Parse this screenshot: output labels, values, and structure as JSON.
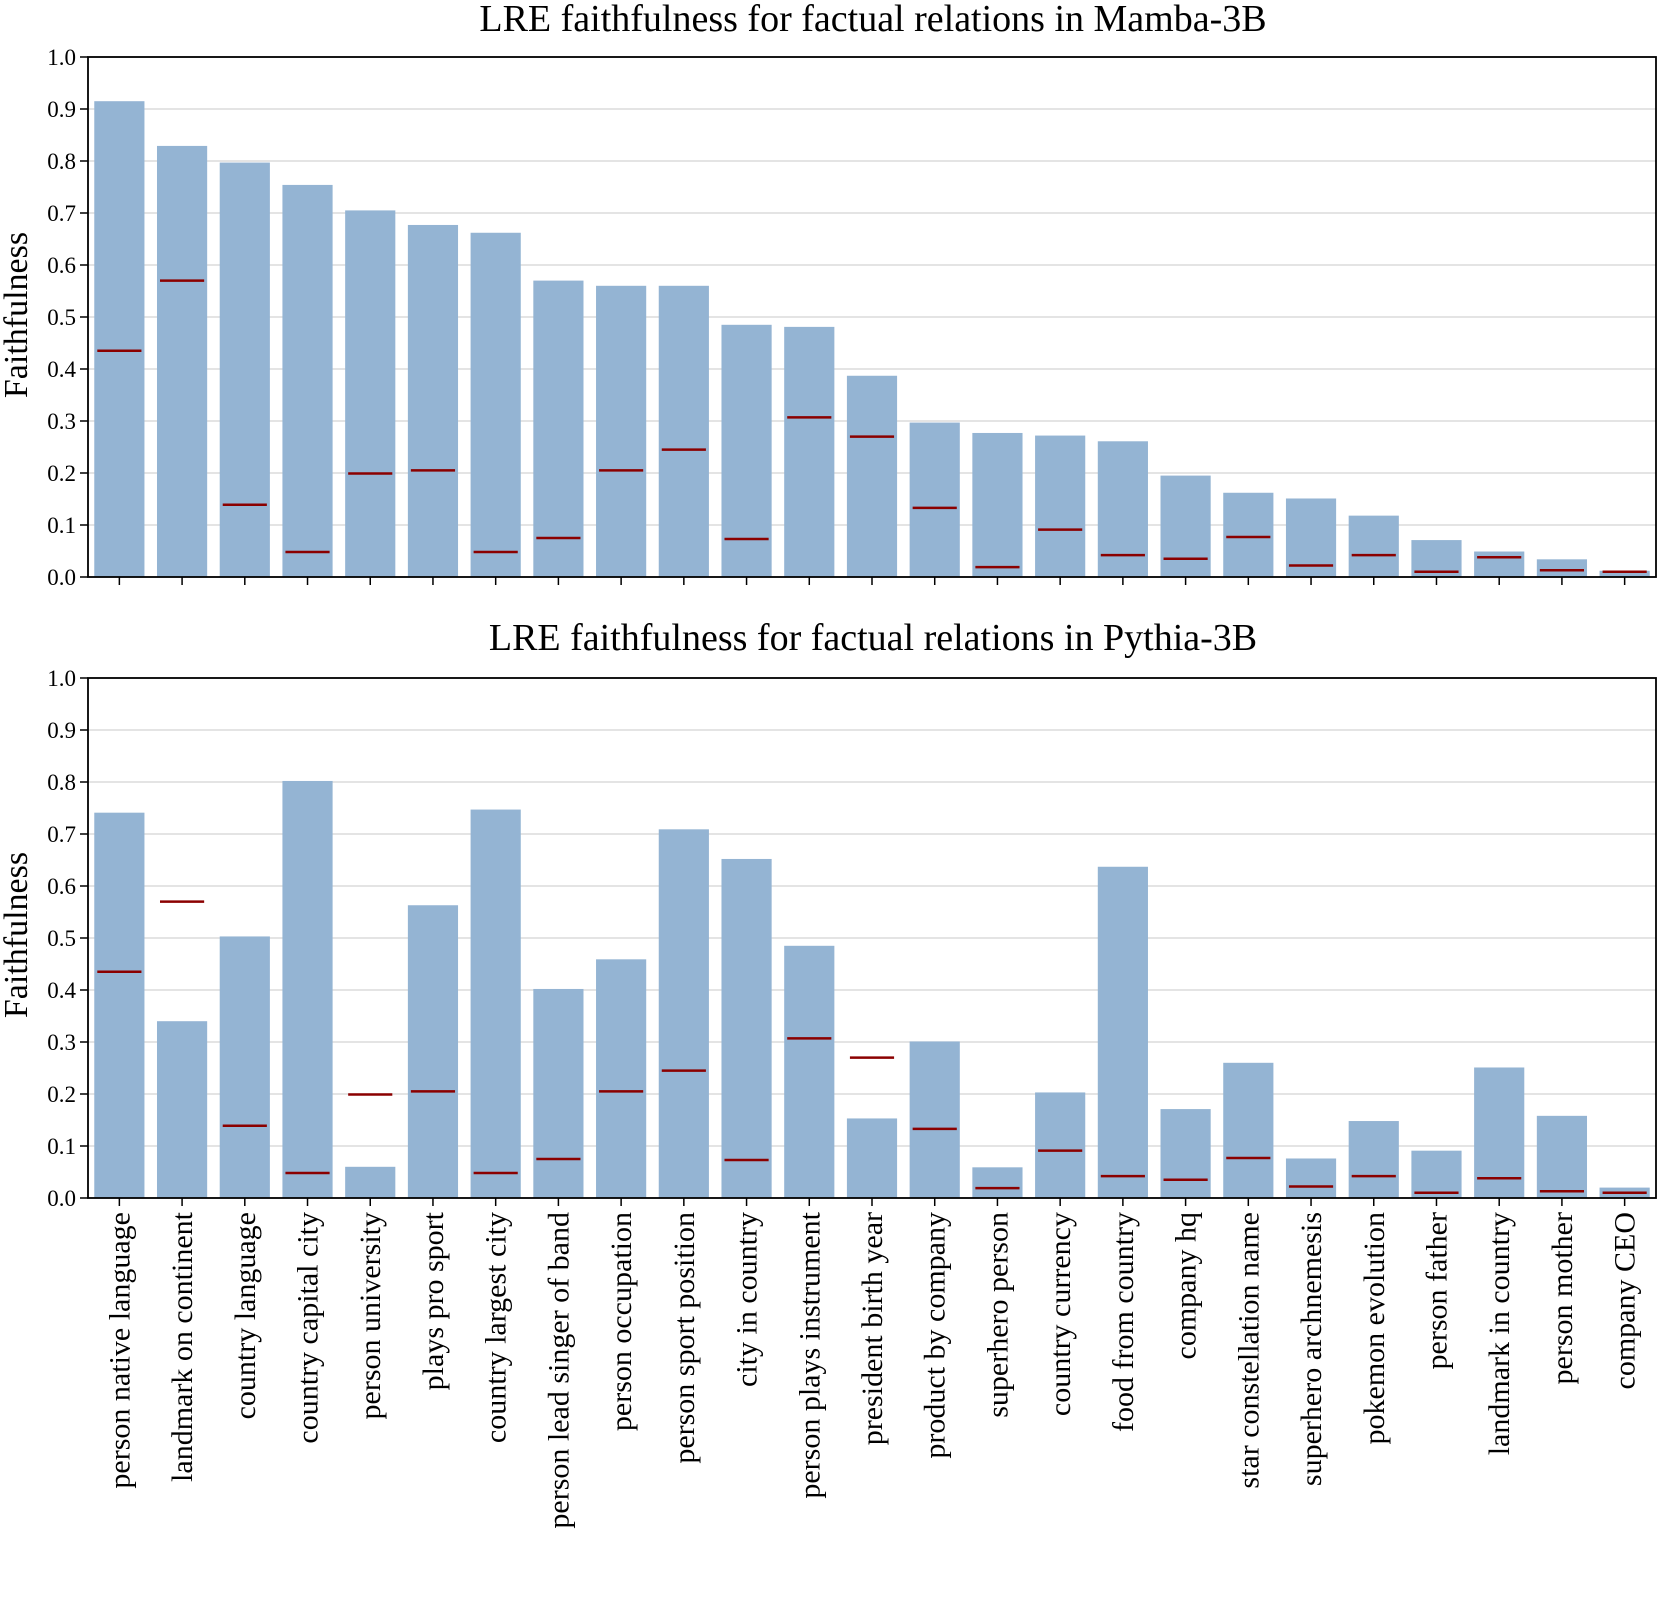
{
  "colors": {
    "bar": "#94b4d3",
    "marker": "#8b0000",
    "grid": "#dcdcdc",
    "axis": "#000000"
  },
  "chart_data": [
    {
      "type": "bar",
      "title": "LRE faithfulness for factual relations in Mamba-3B",
      "xlabel": "",
      "ylabel": "Faithfulness",
      "ylim": [
        0,
        1.0
      ],
      "yticks": [
        "0.0",
        "0.1",
        "0.2",
        "0.3",
        "0.4",
        "0.5",
        "0.6",
        "0.7",
        "0.8",
        "0.9",
        "1.0"
      ],
      "grid": true,
      "show_xtick_labels": false,
      "categories": [
        "person native language",
        "landmark on continent",
        "country language",
        "country capital city",
        "person university",
        "plays pro sport",
        "country largest city",
        "person lead singer of band",
        "person occupation",
        "person sport position",
        "city in country",
        "person plays instrument",
        "president birth year",
        "product by company",
        "superhero person",
        "country currency",
        "food from country",
        "company hq",
        "star constellation name",
        "superhero archnemesis",
        "pokemon evolution",
        "person father",
        "landmark in country",
        "person mother",
        "company CEO"
      ],
      "values": [
        0.915,
        0.829,
        0.797,
        0.754,
        0.705,
        0.677,
        0.662,
        0.57,
        0.56,
        0.56,
        0.485,
        0.481,
        0.387,
        0.297,
        0.277,
        0.272,
        0.261,
        0.195,
        0.162,
        0.151,
        0.118,
        0.071,
        0.049,
        0.034,
        0.012
      ],
      "markers": [
        0.435,
        0.57,
        0.139,
        0.048,
        0.199,
        0.205,
        0.048,
        0.075,
        0.205,
        0.245,
        0.073,
        0.307,
        0.27,
        0.133,
        0.019,
        0.091,
        0.042,
        0.035,
        0.077,
        0.022,
        0.042,
        0.01,
        0.038,
        0.013,
        0.01
      ]
    },
    {
      "type": "bar",
      "title": "LRE faithfulness for factual relations in Pythia-3B",
      "xlabel": "",
      "ylabel": "Faithfulness",
      "ylim": [
        0,
        1.0
      ],
      "yticks": [
        "0.0",
        "0.1",
        "0.2",
        "0.3",
        "0.4",
        "0.5",
        "0.6",
        "0.7",
        "0.8",
        "0.9",
        "1.0"
      ],
      "grid": true,
      "show_xtick_labels": true,
      "categories": [
        "person native language",
        "landmark on continent",
        "country language",
        "country capital city",
        "person university",
        "plays pro sport",
        "country largest city",
        "person lead singer of band",
        "person occupation",
        "person sport position",
        "city in country",
        "person plays instrument",
        "president birth year",
        "product by company",
        "superhero person",
        "country currency",
        "food from country",
        "company hq",
        "star constellation name",
        "superhero archnemesis",
        "pokemon evolution",
        "person father",
        "landmark in country",
        "person mother",
        "company CEO"
      ],
      "values": [
        0.741,
        0.34,
        0.503,
        0.802,
        0.06,
        0.563,
        0.747,
        0.402,
        0.459,
        0.709,
        0.652,
        0.485,
        0.153,
        0.301,
        0.059,
        0.203,
        0.637,
        0.171,
        0.26,
        0.076,
        0.148,
        0.091,
        0.251,
        0.158,
        0.02
      ],
      "markers": [
        0.435,
        0.57,
        0.139,
        0.048,
        0.199,
        0.205,
        0.048,
        0.075,
        0.205,
        0.245,
        0.073,
        0.307,
        0.27,
        0.133,
        0.019,
        0.091,
        0.042,
        0.035,
        0.077,
        0.022,
        0.042,
        0.01,
        0.038,
        0.013,
        0.01
      ]
    }
  ]
}
